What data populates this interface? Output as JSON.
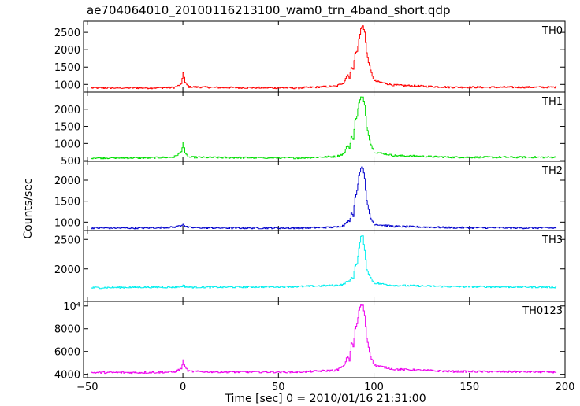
{
  "chart_data": {
    "type": "line",
    "title": "ae704064010_20100116213100_wam0_trn_4band_short.qdp",
    "xlabel": "Time [sec] 0 = 2010/01/16 21:31:00",
    "ylabel": "Counts/sec",
    "xlim": [
      -52,
      200
    ],
    "x_ticks": [
      -50,
      0,
      50,
      100,
      150,
      200
    ],
    "x_tick_labels": [
      "−50",
      "0",
      "50",
      "100",
      "150",
      "200"
    ],
    "panels": [
      {
        "name": "TH0",
        "color": "#ff0000",
        "ylim": [
          780,
          2820
        ],
        "y_ticks": [
          1000,
          1500,
          2000,
          2500
        ],
        "y_tick_labels": [
          "1000",
          "1500",
          "2000",
          "2500"
        ],
        "baseline": 880,
        "x": [
          -48,
          -20,
          -5,
          -1,
          0,
          1,
          3,
          20,
          60,
          80,
          84,
          86,
          87,
          88,
          89,
          90,
          91,
          92,
          93,
          94,
          95,
          96,
          98,
          100,
          110,
          140,
          195
        ],
        "values": [
          900,
          900,
          910,
          1000,
          1350,
          1050,
          930,
          910,
          900,
          950,
          1050,
          1300,
          1150,
          1500,
          1450,
          1900,
          1950,
          2300,
          2600,
          2700,
          2500,
          1900,
          1400,
          1100,
          980,
          920,
          920
        ]
      },
      {
        "name": "TH1",
        "color": "#00dd00",
        "ylim": [
          480,
          2500
        ],
        "y_ticks": [
          500,
          1000,
          1500,
          2000
        ],
        "y_tick_labels": [
          "500",
          "1000",
          "1500",
          "2000"
        ],
        "baseline": 580,
        "x": [
          -48,
          -20,
          -5,
          -1,
          0,
          1,
          3,
          20,
          60,
          80,
          84,
          86,
          87,
          88,
          89,
          90,
          91,
          92,
          93,
          94,
          95,
          96,
          98,
          100,
          110,
          140,
          195
        ],
        "values": [
          580,
          580,
          600,
          750,
          1050,
          700,
          600,
          590,
          580,
          620,
          700,
          950,
          850,
          1200,
          1100,
          1700,
          1800,
          2200,
          2350,
          2350,
          2100,
          1500,
          1000,
          750,
          650,
          600,
          600
        ]
      },
      {
        "name": "TH2",
        "color": "#0000cc",
        "ylim": [
          800,
          2450
        ],
        "y_ticks": [
          1000,
          1500,
          2000
        ],
        "y_tick_labels": [
          "1000",
          "1500",
          "2000"
        ],
        "baseline": 850,
        "x": [
          -48,
          -20,
          -5,
          -1,
          0,
          1,
          3,
          20,
          60,
          80,
          84,
          86,
          87,
          88,
          89,
          90,
          91,
          92,
          93,
          94,
          95,
          96,
          98,
          100,
          110,
          140,
          195
        ],
        "values": [
          860,
          860,
          880,
          920,
          960,
          900,
          870,
          860,
          860,
          880,
          920,
          1050,
          1000,
          1200,
          1150,
          1600,
          1750,
          2100,
          2300,
          2300,
          2050,
          1500,
          1100,
          950,
          900,
          870,
          860
        ]
      },
      {
        "name": "TH3",
        "color": "#00eeee",
        "ylim": [
          1450,
          2650
        ],
        "y_ticks": [
          2000,
          2500
        ],
        "y_tick_labels": [
          "2000",
          "2500"
        ],
        "baseline": 1680,
        "x": [
          -48,
          -20,
          -5,
          -1,
          0,
          1,
          3,
          20,
          60,
          80,
          84,
          86,
          87,
          88,
          89,
          90,
          91,
          92,
          93,
          94,
          95,
          96,
          98,
          100,
          110,
          140,
          195
        ],
        "values": [
          1680,
          1690,
          1690,
          1700,
          1720,
          1700,
          1690,
          1690,
          1700,
          1720,
          1740,
          1800,
          1780,
          1850,
          1850,
          2050,
          2100,
          2350,
          2550,
          2550,
          2300,
          2000,
          1850,
          1760,
          1720,
          1700,
          1690
        ]
      },
      {
        "name": "TH0123",
        "color": "#ee00ee",
        "ylim": [
          3700,
          10400
        ],
        "y_ticks": [
          4000,
          6000,
          8000,
          10000
        ],
        "y_tick_labels": [
          "4000",
          "6000",
          "8000",
          "10⁴"
        ],
        "baseline": 4100,
        "x": [
          -48,
          -20,
          -5,
          -1,
          0,
          1,
          3,
          20,
          60,
          80,
          84,
          86,
          87,
          88,
          89,
          90,
          91,
          92,
          93,
          94,
          95,
          96,
          98,
          100,
          110,
          140,
          195
        ],
        "values": [
          4150,
          4150,
          4200,
          4500,
          5200,
          4600,
          4250,
          4200,
          4200,
          4350,
          4700,
          5600,
          5200,
          6800,
          6400,
          8000,
          8400,
          9600,
          10100,
          10000,
          9200,
          7200,
          5600,
          4800,
          4450,
          4250,
          4200
        ]
      }
    ],
    "grid": false,
    "legend": "none"
  }
}
